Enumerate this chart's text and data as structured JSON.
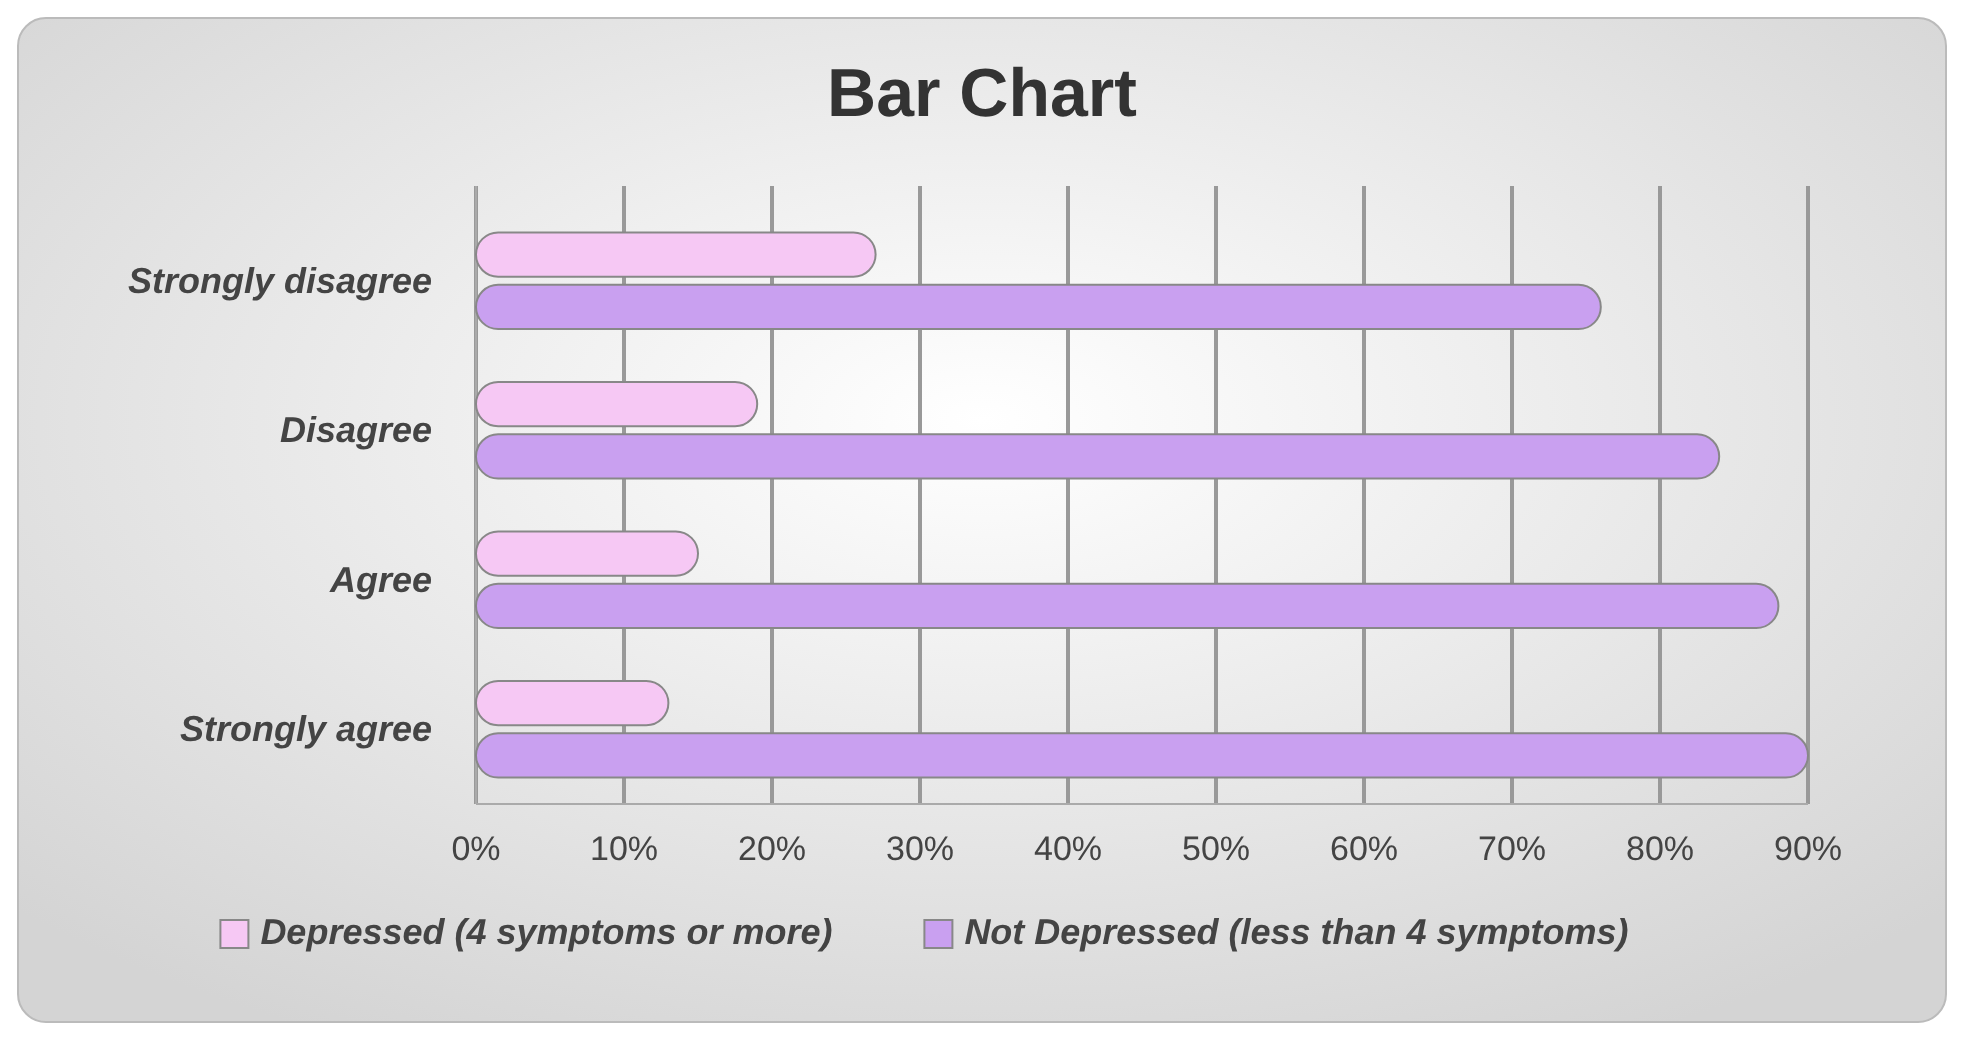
{
  "chart_data": {
    "type": "bar",
    "orientation": "horizontal",
    "title": "Bar Chart",
    "categories": [
      "Strongly disagree",
      "Disagree",
      "Agree",
      "Strongly agree"
    ],
    "series": [
      {
        "name": "Depressed (4 symptoms or more)",
        "color": "#f6c8f4",
        "values": [
          27,
          19,
          15,
          13
        ]
      },
      {
        "name": "Not Depressed (less than 4 symptoms)",
        "color": "#c9a0f0",
        "values": [
          76,
          84,
          88,
          90
        ]
      }
    ],
    "xlim": [
      0,
      90
    ],
    "xticks": [
      {
        "value": 0,
        "label": "0%"
      },
      {
        "value": 10,
        "label": "10%"
      },
      {
        "value": 20,
        "label": "20%"
      },
      {
        "value": 30,
        "label": "30%"
      },
      {
        "value": 40,
        "label": "40%"
      },
      {
        "value": 50,
        "label": "50%"
      },
      {
        "value": 60,
        "label": "60%"
      },
      {
        "value": 70,
        "label": "70%"
      },
      {
        "value": 80,
        "label": "80%"
      },
      {
        "value": 90,
        "label": "90%"
      }
    ],
    "grid": "x",
    "legend": "bottom"
  }
}
